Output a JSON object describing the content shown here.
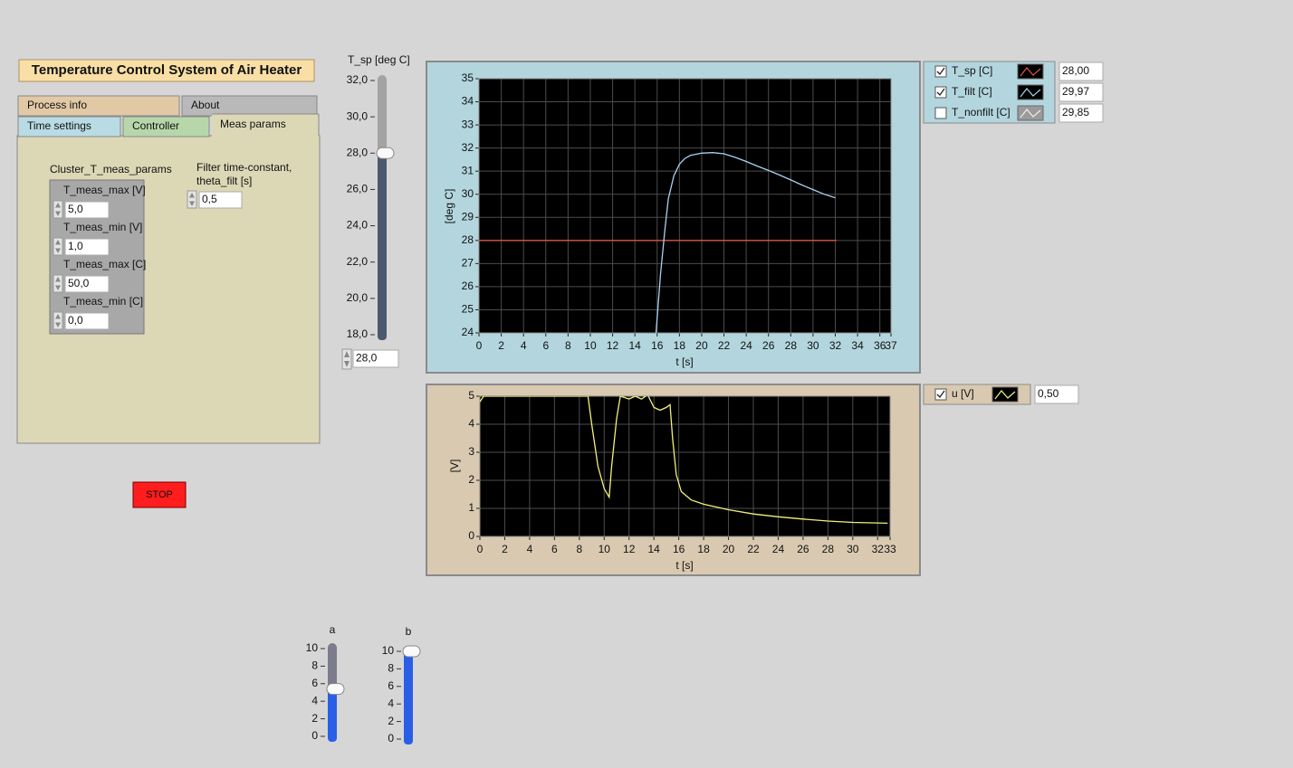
{
  "title": "Temperature Control System of Air Heater",
  "tabs": {
    "back": [
      "Process info",
      "About"
    ],
    "front": [
      "Time settings",
      "Controller",
      "Meas params"
    ]
  },
  "meas_params": {
    "cluster_label": "Cluster_T_meas_params",
    "fields": [
      {
        "label": "T_meas_max [V]",
        "value": "5,0"
      },
      {
        "label": "T_meas_min [V]",
        "value": "1,0"
      },
      {
        "label": "T_meas_max [C]",
        "value": "50,0"
      },
      {
        "label": "T_meas_min [C]",
        "value": "0,0"
      }
    ],
    "filter_label": [
      "Filter time-constant,",
      "theta_filt [s]"
    ],
    "filter_value": "0,5"
  },
  "stop_button": "STOP",
  "sliders": [
    {
      "label": "T_sp [deg C]",
      "lim": [
        18,
        32
      ],
      "ticks": [
        {
          "value": 18,
          "label": "18,0"
        },
        {
          "value": 20,
          "label": "20,0"
        },
        {
          "value": 22,
          "label": "22,0"
        },
        {
          "value": 24,
          "label": "24,0"
        },
        {
          "value": 26,
          "label": "26,0"
        },
        {
          "value": 28,
          "label": "28,0"
        },
        {
          "value": 30,
          "label": "30,0"
        },
        {
          "value": 32,
          "label": "32,0"
        }
      ],
      "value": 28,
      "value_label": "28,0"
    },
    {
      "label": "a",
      "lim": [
        0,
        10
      ],
      "ticks": [
        0,
        2,
        4,
        6,
        8,
        10
      ],
      "value": 5.4
    },
    {
      "label": "b",
      "lim": [
        0,
        10
      ],
      "ticks": [
        0,
        2,
        4,
        6,
        8,
        10
      ],
      "value": 10
    }
  ],
  "chart_data": [
    {
      "type": "line",
      "xlabel": "t [s]",
      "ylabel": "[deg C]",
      "xlim": [
        0,
        37
      ],
      "xticks": [
        0,
        2,
        4,
        6,
        8,
        10,
        12,
        14,
        16,
        18,
        20,
        22,
        24,
        26,
        28,
        30,
        32,
        34,
        36,
        37
      ],
      "ylim": [
        24,
        35
      ],
      "yticks": [
        24,
        25,
        26,
        27,
        28,
        29,
        30,
        31,
        32,
        33,
        34,
        35
      ],
      "grid": true,
      "series": [
        {
          "name": "T_sp [C]",
          "color": "#d9583e",
          "visible": true,
          "legend_value": "28,00",
          "x": [
            0,
            32.1
          ],
          "values": [
            28,
            28
          ]
        },
        {
          "name": "T_filt [C]",
          "color": "#a9d2f2",
          "visible": true,
          "legend_value": "29,97",
          "x": [
            15.9,
            16.3,
            16.7,
            17,
            17.5,
            18,
            18.5,
            19,
            20,
            21,
            22,
            23,
            24,
            25,
            26,
            27,
            28,
            29,
            30,
            31,
            32
          ],
          "values": [
            24,
            26.5,
            28.5,
            29.8,
            30.8,
            31.3,
            31.55,
            31.68,
            31.78,
            31.8,
            31.75,
            31.6,
            31.42,
            31.22,
            31.03,
            30.83,
            30.62,
            30.4,
            30.2,
            30.0,
            29.85
          ]
        },
        {
          "name": "T_nonfilt [C]",
          "color": "#c8c8c8",
          "visible": false,
          "legend_value": "29,85"
        }
      ]
    },
    {
      "type": "line",
      "xlabel": "t [s]",
      "ylabel": "[V]",
      "xlim": [
        0,
        33
      ],
      "xticks": [
        0,
        2,
        4,
        6,
        8,
        10,
        12,
        14,
        16,
        18,
        20,
        22,
        24,
        26,
        28,
        30,
        32,
        33
      ],
      "ylim": [
        0,
        5
      ],
      "yticks": [
        0,
        1,
        2,
        3,
        4,
        5
      ],
      "grid": true,
      "series": [
        {
          "name": "u [V]",
          "color": "#f2f27a",
          "visible": true,
          "legend_value": "0,50",
          "x": [
            0,
            0.3,
            8.7,
            9,
            9.5,
            10,
            10.4,
            10.6,
            11,
            11.3,
            12,
            12.5,
            13,
            13.5,
            14,
            14.5,
            15,
            15.3,
            15.5,
            15.8,
            16.2,
            17,
            18,
            20,
            22,
            24,
            26,
            28,
            30,
            32,
            32.8
          ],
          "values": [
            4.8,
            5,
            5,
            4,
            2.5,
            1.7,
            1.4,
            2.5,
            4.2,
            5,
            4.9,
            5,
            4.9,
            5.05,
            4.6,
            4.5,
            4.6,
            4.7,
            3.5,
            2.2,
            1.6,
            1.3,
            1.15,
            0.95,
            0.8,
            0.7,
            0.62,
            0.55,
            0.5,
            0.48,
            0.47
          ]
        }
      ]
    }
  ]
}
